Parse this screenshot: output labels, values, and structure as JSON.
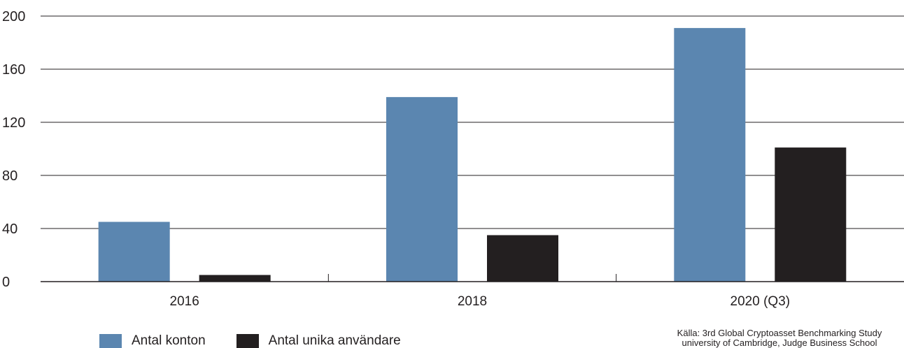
{
  "chart_data": {
    "type": "bar",
    "categories": [
      "2016",
      "2018",
      "2020 (Q3)"
    ],
    "series": [
      {
        "name": "Antal konton",
        "color": "#5b86b0",
        "values": [
          45,
          139,
          191
        ]
      },
      {
        "name": "Antal unika användare",
        "color": "#231f20",
        "values": [
          5,
          35,
          101
        ]
      }
    ],
    "ylim": [
      0,
      200
    ],
    "yticks": [
      "0",
      "40",
      "80",
      "120",
      "160",
      "200"
    ],
    "xlabel": "",
    "ylabel": "",
    "grid": true,
    "legend_position": "bottom-left"
  },
  "source": {
    "line1": "Källa: 3rd Global Cryptoasset Benchmarking Study",
    "line2": "university of Cambridge, Judge Business School"
  }
}
